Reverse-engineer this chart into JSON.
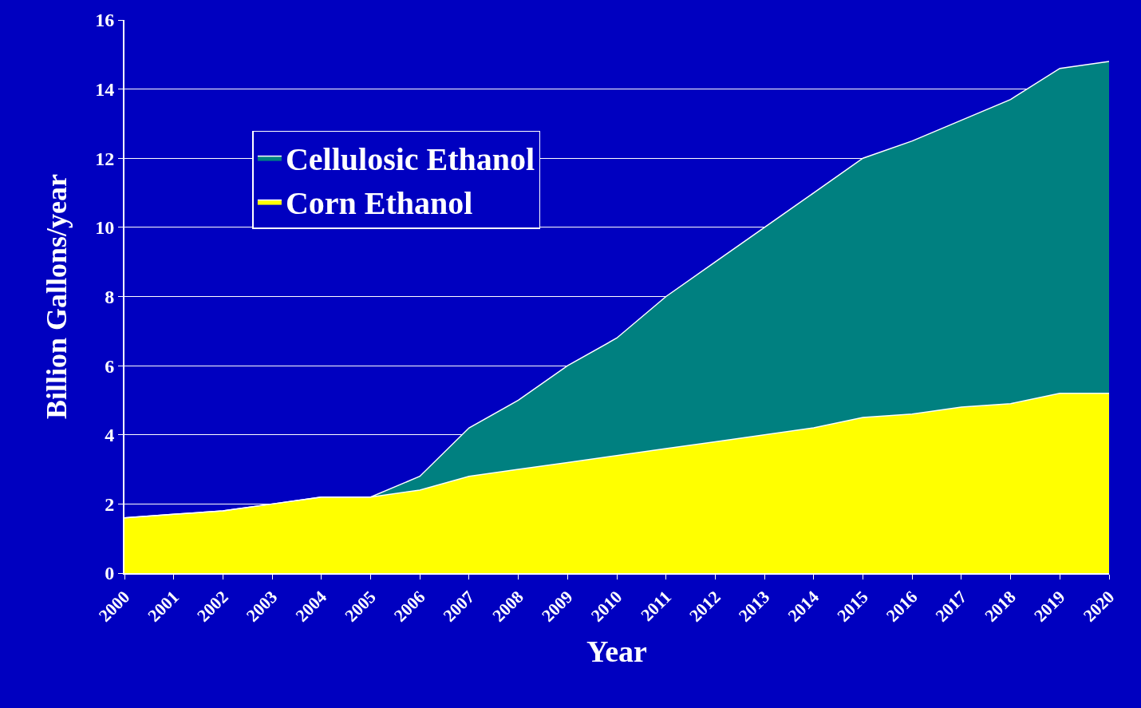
{
  "chart_data": {
    "type": "area",
    "stacked": true,
    "xlabel": "Year",
    "ylabel": "Billion Gallons/year",
    "x": [
      2000,
      2001,
      2002,
      2003,
      2004,
      2005,
      2006,
      2007,
      2008,
      2009,
      2010,
      2011,
      2012,
      2013,
      2014,
      2015,
      2016,
      2017,
      2018,
      2019,
      2020
    ],
    "series": [
      {
        "name": "Corn Ethanol",
        "color": "#ffff00",
        "values": [
          1.6,
          1.7,
          1.8,
          2.0,
          2.2,
          2.2,
          2.4,
          2.8,
          3.0,
          3.2,
          3.4,
          3.6,
          3.8,
          4.0,
          4.2,
          4.5,
          4.6,
          4.8,
          4.9,
          5.2,
          5.2
        ]
      },
      {
        "name": "Cellulosic Ethanol",
        "color": "#008080",
        "values": [
          0,
          0,
          0,
          0,
          0,
          0,
          0.4,
          1.4,
          2.0,
          2.8,
          3.4,
          4.4,
          5.2,
          6.0,
          6.8,
          7.5,
          7.9,
          8.3,
          8.8,
          9.4,
          9.6
        ]
      }
    ],
    "xlim": [
      2000,
      2020
    ],
    "xticks": [
      2000,
      2001,
      2002,
      2003,
      2004,
      2005,
      2006,
      2007,
      2008,
      2009,
      2010,
      2011,
      2012,
      2013,
      2014,
      2015,
      2016,
      2017,
      2018,
      2019,
      2020
    ],
    "ylim": [
      0,
      16
    ],
    "yticks": [
      0,
      2,
      4,
      6,
      8,
      10,
      12,
      14,
      16
    ],
    "grid": "y",
    "legend": "top left"
  }
}
